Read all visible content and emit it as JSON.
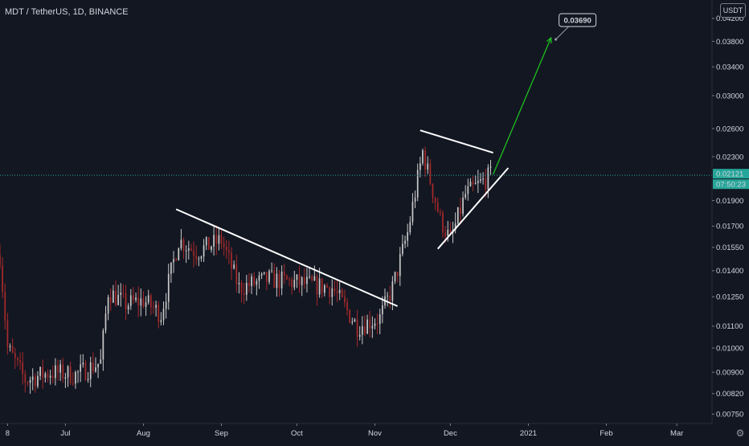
{
  "header": {
    "title": "MDT / TetherUS, 1D, BINANCE"
  },
  "price_axis": {
    "currency_button": "USDT"
  },
  "last_price": {
    "value": "0.02121",
    "countdown": "07:50:23",
    "color": "#26a69a"
  },
  "annotation": {
    "target_label": "0.03690"
  },
  "colors": {
    "background": "#131722",
    "up_candle": "#c8c8c8",
    "down_candle": "#a52a2a",
    "trend_lines": "#ffffff",
    "projection_arrow": "#1fbf1f"
  },
  "chart_data": {
    "type": "candlestick",
    "title": "MDT / TetherUS, 1D, BINANCE",
    "y_scale": "log",
    "ylim": [
      0.0072,
      0.0455
    ],
    "y_ticks": [
      "0.04200",
      "0.03800",
      "0.03400",
      "0.03000",
      "0.02600",
      "0.02300",
      "0.01900",
      "0.01700",
      "0.01550",
      "0.01400",
      "0.01250",
      "0.01100",
      "0.01000",
      "0.00900",
      "0.00820",
      "0.00750"
    ],
    "x_ticks": [
      "8",
      "Jul",
      "Aug",
      "Sep",
      "Oct",
      "Nov",
      "Dec",
      "2021",
      "Feb",
      "Mar"
    ],
    "x_range": [
      "2020-06-05",
      "2021-03-15"
    ],
    "anchors": [
      {
        "date": "2020-06-05",
        "close": 0.015
      },
      {
        "date": "2020-06-08",
        "close": 0.01
      },
      {
        "date": "2020-06-15",
        "close": 0.0087
      },
      {
        "date": "2020-06-25",
        "close": 0.009
      },
      {
        "date": "2020-07-05",
        "close": 0.0089
      },
      {
        "date": "2020-07-15",
        "close": 0.0094
      },
      {
        "date": "2020-07-18",
        "close": 0.0128
      },
      {
        "date": "2020-07-25",
        "close": 0.0121
      },
      {
        "date": "2020-08-01",
        "close": 0.0123
      },
      {
        "date": "2020-08-08",
        "close": 0.0116
      },
      {
        "date": "2020-08-15",
        "close": 0.016
      },
      {
        "date": "2020-08-22",
        "close": 0.0152
      },
      {
        "date": "2020-09-01",
        "close": 0.016
      },
      {
        "date": "2020-09-08",
        "close": 0.013
      },
      {
        "date": "2020-09-20",
        "close": 0.0135
      },
      {
        "date": "2020-10-05",
        "close": 0.0132
      },
      {
        "date": "2020-10-15",
        "close": 0.013
      },
      {
        "date": "2020-10-25",
        "close": 0.011
      },
      {
        "date": "2020-11-03",
        "close": 0.0114
      },
      {
        "date": "2020-11-08",
        "close": 0.013
      },
      {
        "date": "2020-11-14",
        "close": 0.0165
      },
      {
        "date": "2020-11-20",
        "close": 0.0235
      },
      {
        "date": "2020-11-27",
        "close": 0.0175
      },
      {
        "date": "2020-12-01",
        "close": 0.016
      },
      {
        "date": "2020-12-07",
        "close": 0.0195
      },
      {
        "date": "2020-12-13",
        "close": 0.0205
      },
      {
        "date": "2020-12-17",
        "close": 0.02121
      }
    ],
    "trend_lines": [
      {
        "name": "descending-resistance",
        "from": {
          "date": "2020-08-14",
          "price": 0.0183
        },
        "to": {
          "date": "2020-11-10",
          "price": 0.012
        }
      },
      {
        "name": "triangle-upper",
        "from": {
          "date": "2020-11-19",
          "price": 0.0258
        },
        "to": {
          "date": "2020-12-18",
          "price": 0.0234
        }
      },
      {
        "name": "triangle-lower",
        "from": {
          "date": "2020-11-26",
          "price": 0.0154
        },
        "to": {
          "date": "2020-12-24",
          "price": 0.0219
        }
      }
    ],
    "projection": {
      "from": {
        "date": "2020-12-18",
        "price": 0.0213
      },
      "to": {
        "date": "2021-01-10",
        "price": 0.0386
      },
      "label": "0.03690"
    },
    "last_price_line": 0.02121
  }
}
